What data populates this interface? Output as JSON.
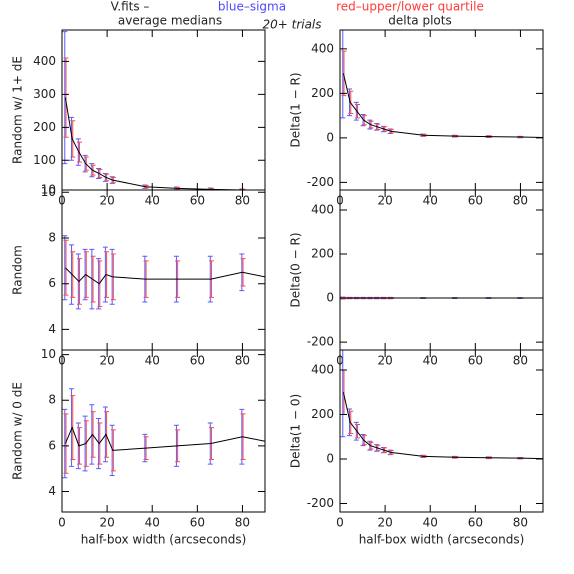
{
  "header": {
    "fits": "V.fits  –",
    "blue": "blue–sigma",
    "red": "red–upper/lower quartile",
    "left_title": "average medians",
    "trials": "20+ trials",
    "right_title": "delta plots"
  },
  "colors": {
    "line": "#000000",
    "sigma": "#5a5aff",
    "quartile": "#ff4a4a"
  },
  "chart_data": [
    {
      "type": "errorline",
      "ylabel": "Random w/ 1+ dE",
      "xlim": [
        0,
        90
      ],
      "xticks": [
        0,
        20,
        40,
        60,
        80
      ],
      "ylim": [
        10,
        495
      ],
      "yticks": [
        10,
        100,
        200,
        300,
        400
      ],
      "x": [
        1.5,
        4.5,
        7.5,
        10.5,
        13.5,
        16.5,
        19.5,
        22.5,
        37,
        51,
        66,
        80,
        90
      ],
      "values": [
        290,
        165,
        125,
        90,
        70,
        60,
        48,
        40,
        20,
        15,
        12,
        10,
        8
      ],
      "sigma": [
        200,
        65,
        40,
        25,
        20,
        15,
        12,
        10,
        5,
        4,
        4,
        3,
        null
      ],
      "quartile": [
        120,
        55,
        30,
        20,
        15,
        12,
        10,
        8,
        4,
        3,
        3,
        2,
        null
      ]
    },
    {
      "type": "errorline",
      "ylabel": "Delta(1 − R)",
      "xlim": [
        0,
        90
      ],
      "xticks": [
        0,
        20,
        40,
        60,
        80
      ],
      "ylim": [
        -234,
        485
      ],
      "yticks": [
        -200,
        0,
        200,
        400
      ],
      "x": [
        1.5,
        4.5,
        7.5,
        10.5,
        13.5,
        16.5,
        19.5,
        22.5,
        37,
        51,
        66,
        80,
        90
      ],
      "values": [
        290,
        160,
        120,
        80,
        60,
        50,
        40,
        30,
        12,
        8,
        6,
        4,
        2
      ],
      "sigma": [
        200,
        60,
        40,
        25,
        20,
        15,
        12,
        10,
        5,
        4,
        4,
        3,
        null
      ],
      "quartile": [
        100,
        50,
        30,
        20,
        15,
        12,
        10,
        8,
        4,
        3,
        3,
        2,
        null
      ]
    },
    {
      "type": "errorline",
      "ylabel": "Random",
      "xlim": [
        0,
        90
      ],
      "xticks": [
        0,
        20,
        40,
        60,
        80
      ],
      "ylim": [
        3.1,
        10.1
      ],
      "yticks": [
        4,
        6,
        8,
        10
      ],
      "x": [
        1.5,
        4.5,
        7.5,
        10.5,
        13.5,
        16.5,
        19.5,
        22.5,
        37,
        51,
        66,
        80,
        90
      ],
      "values": [
        6.7,
        6.4,
        6.1,
        6.4,
        6.2,
        6.0,
        6.4,
        6.3,
        6.2,
        6.2,
        6.2,
        6.5,
        6.3
      ],
      "sigma": [
        1.4,
        1.3,
        1.2,
        1.1,
        1.3,
        1.1,
        1.2,
        1.2,
        1.0,
        1.0,
        1.0,
        0.8,
        null
      ],
      "quartile": [
        1.2,
        1.0,
        1.0,
        1.0,
        1.0,
        1.0,
        1.0,
        1.0,
        0.8,
        0.8,
        0.8,
        0.6,
        null
      ]
    },
    {
      "type": "errorline",
      "ylabel": "Delta(0 − R)",
      "xlim": [
        0,
        90
      ],
      "xticks": [
        0,
        20,
        40,
        60,
        80
      ],
      "ylim": [
        -236,
        491
      ],
      "yticks": [
        -200,
        0,
        200,
        400
      ],
      "x": [
        1.5,
        4.5,
        7.5,
        10.5,
        13.5,
        16.5,
        19.5,
        22.5,
        37,
        51,
        66,
        80,
        90
      ],
      "values": [
        0,
        0,
        0,
        0,
        0,
        0,
        0,
        0,
        0,
        0,
        0,
        0,
        0
      ],
      "sigma": [
        4,
        3,
        3,
        3,
        3,
        3,
        3,
        3,
        2,
        2,
        2,
        2,
        null
      ],
      "quartile": [
        3,
        2,
        2,
        2,
        2,
        2,
        2,
        2,
        1,
        1,
        1,
        1,
        null
      ]
    },
    {
      "type": "errorline",
      "ylabel": "Random w/ 0 dE",
      "xlabel": "half-box width (arcseconds)",
      "xlim": [
        0,
        90
      ],
      "xticks": [
        0,
        20,
        40,
        60,
        80
      ],
      "ylim": [
        3.1,
        10.2
      ],
      "yticks": [
        4,
        6,
        8,
        10
      ],
      "x": [
        1.5,
        4.5,
        7.5,
        10.5,
        13.5,
        16.5,
        19.5,
        22.5,
        37,
        51,
        66,
        80,
        90
      ],
      "values": [
        6.1,
        6.8,
        6.0,
        6.1,
        6.5,
        6.1,
        6.5,
        5.8,
        5.9,
        6.0,
        6.1,
        6.4,
        6.2
      ],
      "sigma": [
        1.5,
        1.7,
        1.0,
        1.2,
        1.3,
        1.1,
        1.2,
        1.1,
        0.6,
        0.9,
        0.9,
        1.2,
        null
      ],
      "quartile": [
        1.3,
        1.4,
        0.8,
        1.0,
        1.0,
        0.9,
        1.0,
        0.9,
        0.5,
        0.7,
        0.7,
        1.0,
        null
      ]
    },
    {
      "type": "errorline",
      "ylabel": "Delta(1 − 0)",
      "xlabel": "half-box width (arcseconds)",
      "xlim": [
        0,
        90
      ],
      "xticks": [
        0,
        20,
        40,
        60,
        80
      ],
      "ylim": [
        -238,
        490
      ],
      "yticks": [
        -200,
        0,
        200,
        400
      ],
      "x": [
        1.5,
        4.5,
        7.5,
        10.5,
        13.5,
        16.5,
        19.5,
        22.5,
        37,
        51,
        66,
        80,
        90
      ],
      "values": [
        300,
        165,
        125,
        85,
        60,
        50,
        40,
        30,
        12,
        8,
        6,
        4,
        2
      ],
      "sigma": [
        200,
        60,
        40,
        25,
        20,
        15,
        12,
        10,
        5,
        4,
        4,
        3,
        null
      ],
      "quartile": [
        100,
        50,
        30,
        20,
        15,
        12,
        10,
        8,
        4,
        3,
        3,
        2,
        null
      ]
    }
  ]
}
